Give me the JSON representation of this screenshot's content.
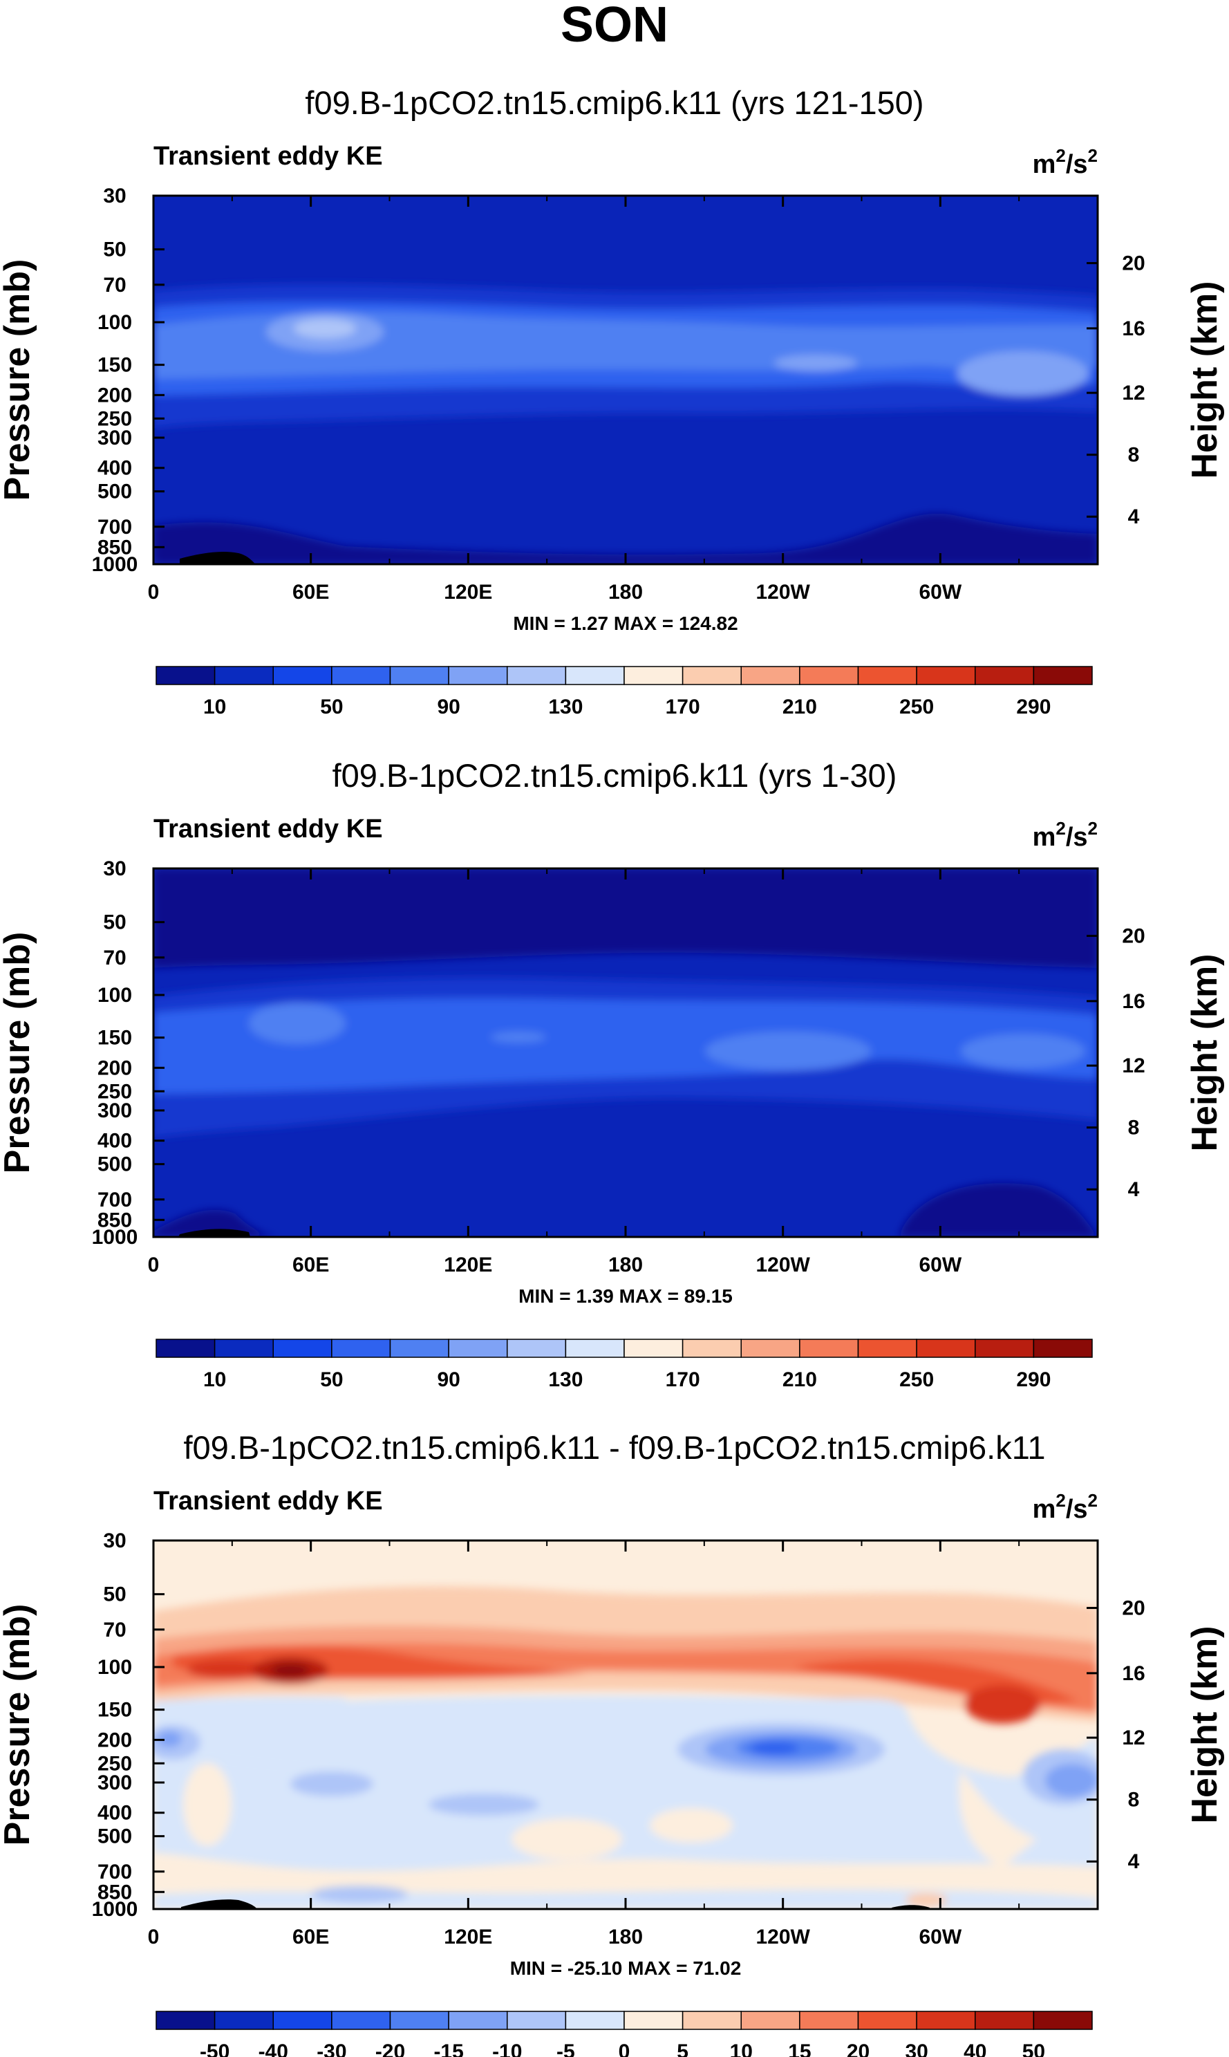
{
  "page_title": "SON",
  "chart_data": [
    {
      "type": "heatmap",
      "title": "f09.B-1pCO2.tn15.cmip6.k11 (yrs 121-150)",
      "variable": "Transient eddy KE",
      "units": "m",
      "units_sup1": "2",
      "units_mid": "/s",
      "units_sup2": "2",
      "ylabel": "Pressure (mb)",
      "ylabel_right": "Height (km)",
      "x_ticks": [
        "0",
        "60E",
        "120E",
        "180",
        "120W",
        "60W"
      ],
      "y_ticks": [
        "30",
        "50",
        "70",
        "100",
        "150",
        "200",
        "250",
        "300",
        "400",
        "500",
        "700",
        "850",
        "1000"
      ],
      "height_ticks": [
        "20",
        "16",
        "12",
        "8",
        "4"
      ],
      "minmax": "MIN =   1.27   MAX = 124.82",
      "min": 1.27,
      "max": 124.82,
      "colorbar": {
        "labels": [
          "10",
          "50",
          "90",
          "130",
          "170",
          "210",
          "250",
          "290"
        ],
        "colors": [
          "#08118c",
          "#0a2bbf",
          "#1446e8",
          "#2f62ef",
          "#4f80f2",
          "#7fa2f5",
          "#aec5f8",
          "#d8e6fb",
          "#fdeede",
          "#fbcdb0",
          "#f8a585",
          "#f47b58",
          "#ec5430",
          "#d8351b",
          "#b81e10",
          "#8a0a07"
        ]
      },
      "fields": [
        {
          "level": 1,
          "color": "#0a24b8",
          "y_from": 0.0,
          "y_to": 1.0
        },
        {
          "level": 2,
          "color": "#1238cf",
          "y_from": 0.27,
          "y_to": 0.65
        },
        {
          "level": 3,
          "color": "#2f62ef",
          "y_from": 0.3,
          "y_to": 0.55
        },
        {
          "level": 4,
          "color": "#4f80f2",
          "y_from": 0.33,
          "y_to": 0.5
        },
        {
          "level": 5,
          "color": "#7fa2f5",
          "y_from": 0.35,
          "y_to": 0.46
        },
        {
          "level": 0,
          "color": "#08118c",
          "y_from": 0.85,
          "y_to": 1.0
        }
      ]
    },
    {
      "type": "heatmap",
      "title": "f09.B-1pCO2.tn15.cmip6.k11 (yrs 1-30)",
      "variable": "Transient eddy KE",
      "units": "m",
      "units_sup1": "2",
      "units_mid": "/s",
      "units_sup2": "2",
      "ylabel": "Pressure (mb)",
      "ylabel_right": "Height (km)",
      "x_ticks": [
        "0",
        "60E",
        "120E",
        "180",
        "120W",
        "60W"
      ],
      "y_ticks": [
        "30",
        "50",
        "70",
        "100",
        "150",
        "200",
        "250",
        "300",
        "400",
        "500",
        "700",
        "850",
        "1000"
      ],
      "height_ticks": [
        "20",
        "16",
        "12",
        "8",
        "4"
      ],
      "minmax": "MIN =   1.39   MAX = 89.15",
      "min": 1.39,
      "max": 89.15,
      "colorbar": {
        "labels": [
          "10",
          "50",
          "90",
          "130",
          "170",
          "210",
          "250",
          "290"
        ],
        "colors": [
          "#08118c",
          "#0a2bbf",
          "#1446e8",
          "#2f62ef",
          "#4f80f2",
          "#7fa2f5",
          "#aec5f8",
          "#d8e6fb",
          "#fdeede",
          "#fbcdb0",
          "#f8a585",
          "#f47b58",
          "#ec5430",
          "#d8351b",
          "#b81e10",
          "#8a0a07"
        ]
      }
    },
    {
      "type": "heatmap",
      "title": "f09.B-1pCO2.tn15.cmip6.k11 - f09.B-1pCO2.tn15.cmip6.k11",
      "variable": "Transient eddy KE",
      "units": "m",
      "units_sup1": "2",
      "units_mid": "/s",
      "units_sup2": "2",
      "ylabel": "Pressure (mb)",
      "ylabel_right": "Height (km)",
      "x_ticks": [
        "0",
        "60E",
        "120E",
        "180",
        "120W",
        "60W"
      ],
      "y_ticks": [
        "30",
        "50",
        "70",
        "100",
        "150",
        "200",
        "250",
        "300",
        "400",
        "500",
        "700",
        "850",
        "1000"
      ],
      "height_ticks": [
        "20",
        "16",
        "12",
        "8",
        "4"
      ],
      "minmax": "MIN = -25.10   MAX = 71.02",
      "min": -25.1,
      "max": 71.02,
      "colorbar": {
        "labels": [
          "-50",
          "-40",
          "-30",
          "-20",
          "-15",
          "-10",
          "-5",
          "0",
          "5",
          "10",
          "15",
          "20",
          "30",
          "40",
          "50"
        ],
        "colors": [
          "#08118c",
          "#0a2bbf",
          "#1446e8",
          "#2f62ef",
          "#4f80f2",
          "#7fa2f5",
          "#aec5f8",
          "#d8e6fb",
          "#fdeede",
          "#fbcdb0",
          "#f8a585",
          "#f47b58",
          "#ec5430",
          "#d8351b",
          "#b81e10",
          "#8a0a07"
        ]
      }
    }
  ]
}
